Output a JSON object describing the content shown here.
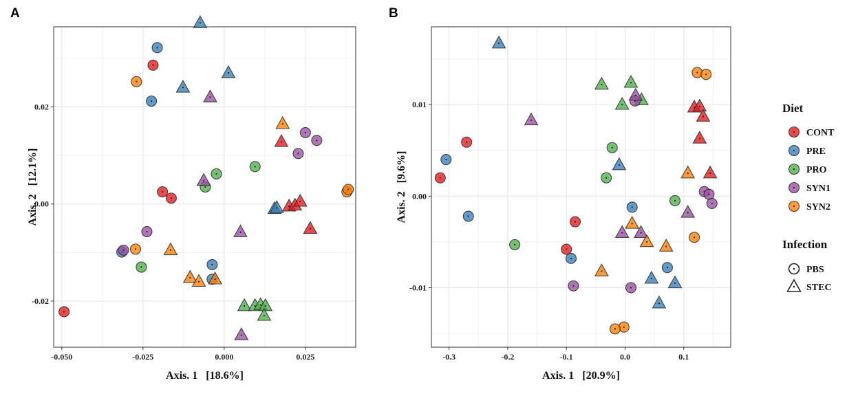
{
  "colors": {
    "CONT": "#e41a1c",
    "PRE": "#377eb8",
    "PRO": "#4daf4a",
    "SYN1": "#984ea3",
    "SYN2": "#ff7f00"
  },
  "legend": {
    "diet_title": "Diet",
    "diet_items": [
      "CONT",
      "PRE",
      "PRO",
      "SYN1",
      "SYN2"
    ],
    "infection_title": "Infection",
    "infection_items": [
      "PBS",
      "STEC"
    ]
  },
  "chart_data": [
    {
      "panel": "A",
      "type": "scatter",
      "xlabel": "Axis. 1   [18.6%]",
      "ylabel": "Axis. 2   [12.1%]",
      "xlim": [
        -0.0525,
        0.0405
      ],
      "ylim": [
        -0.0295,
        0.0365
      ],
      "xticks": [
        -0.05,
        -0.025,
        0.0,
        0.025
      ],
      "xtick_labels": [
        "-0.050",
        "-0.025",
        "0.000",
        "0.025"
      ],
      "yticks": [
        -0.02,
        0.0,
        0.02
      ],
      "ytick_labels": [
        "-0.02",
        "0.00",
        "0.02"
      ],
      "points": [
        {
          "x": -0.0219,
          "y": 0.0286,
          "diet": "CONT",
          "infection": "PBS"
        },
        {
          "x": -0.019,
          "y": 0.0025,
          "diet": "CONT",
          "infection": "PBS"
        },
        {
          "x": -0.0163,
          "y": 0.0012,
          "diet": "CONT",
          "infection": "PBS"
        },
        {
          "x": -0.0493,
          "y": -0.0222,
          "diet": "CONT",
          "infection": "PBS"
        },
        {
          "x": 0.0176,
          "y": 0.0128,
          "diet": "CONT",
          "infection": "STEC"
        },
        {
          "x": 0.02,
          "y": -0.0005,
          "diet": "CONT",
          "infection": "STEC"
        },
        {
          "x": 0.0218,
          "y": -0.0003,
          "diet": "CONT",
          "infection": "STEC"
        },
        {
          "x": 0.0234,
          "y": 0.0005,
          "diet": "CONT",
          "infection": "STEC"
        },
        {
          "x": 0.0265,
          "y": -0.0051,
          "diet": "CONT",
          "infection": "STEC"
        },
        {
          "x": -0.0206,
          "y": 0.0322,
          "diet": "PRE",
          "infection": "PBS"
        },
        {
          "x": -0.0224,
          "y": 0.0212,
          "diet": "PRE",
          "infection": "PBS"
        },
        {
          "x": -0.0315,
          "y": -0.0099,
          "diet": "PRE",
          "infection": "PBS"
        },
        {
          "x": -0.0037,
          "y": -0.0125,
          "diet": "PRE",
          "infection": "PBS"
        },
        {
          "x": -0.0037,
          "y": -0.0155,
          "diet": "PRE",
          "infection": "PBS"
        },
        {
          "x": -0.0074,
          "y": 0.0373,
          "diet": "PRE",
          "infection": "STEC"
        },
        {
          "x": -0.0127,
          "y": 0.024,
          "diet": "PRE",
          "infection": "STEC"
        },
        {
          "x": 0.0013,
          "y": 0.027,
          "diet": "PRE",
          "infection": "STEC"
        },
        {
          "x": 0.0155,
          "y": -0.001,
          "diet": "PRE",
          "infection": "STEC"
        },
        {
          "x": 0.0162,
          "y": -0.0008,
          "diet": "PRE",
          "infection": "STEC"
        },
        {
          "x": -0.0058,
          "y": 0.0035,
          "diet": "PRO",
          "infection": "PBS"
        },
        {
          "x": -0.0024,
          "y": 0.0062,
          "diet": "PRO",
          "infection": "PBS"
        },
        {
          "x": 0.0095,
          "y": 0.0077,
          "diet": "PRO",
          "infection": "PBS"
        },
        {
          "x": -0.0255,
          "y": -0.013,
          "diet": "PRO",
          "infection": "PBS"
        },
        {
          "x": 0.0062,
          "y": -0.021,
          "diet": "PRO",
          "infection": "STEC"
        },
        {
          "x": 0.0095,
          "y": -0.021,
          "diet": "PRO",
          "infection": "STEC"
        },
        {
          "x": 0.0112,
          "y": -0.0208,
          "diet": "PRO",
          "infection": "STEC"
        },
        {
          "x": 0.0127,
          "y": -0.021,
          "diet": "PRO",
          "infection": "STEC"
        },
        {
          "x": 0.0123,
          "y": -0.023,
          "diet": "PRO",
          "infection": "STEC"
        },
        {
          "x": -0.031,
          "y": -0.0095,
          "diet": "SYN1",
          "infection": "PBS"
        },
        {
          "x": -0.0238,
          "y": -0.0057,
          "diet": "SYN1",
          "infection": "PBS"
        },
        {
          "x": 0.025,
          "y": 0.0147,
          "diet": "SYN1",
          "infection": "PBS"
        },
        {
          "x": 0.0285,
          "y": 0.0131,
          "diet": "SYN1",
          "infection": "PBS"
        },
        {
          "x": 0.0228,
          "y": 0.0104,
          "diet": "SYN1",
          "infection": "PBS"
        },
        {
          "x": -0.0043,
          "y": 0.022,
          "diet": "SYN1",
          "infection": "STEC"
        },
        {
          "x": -0.0063,
          "y": 0.0048,
          "diet": "SYN1",
          "infection": "STEC"
        },
        {
          "x": 0.005,
          "y": -0.0058,
          "diet": "SYN1",
          "infection": "STEC"
        },
        {
          "x": 0.0053,
          "y": -0.027,
          "diet": "SYN1",
          "infection": "STEC"
        },
        {
          "x": -0.027,
          "y": 0.0252,
          "diet": "SYN2",
          "infection": "PBS"
        },
        {
          "x": -0.0273,
          "y": -0.0093,
          "diet": "SYN2",
          "infection": "PBS"
        },
        {
          "x": 0.0378,
          "y": 0.0025,
          "diet": "SYN2",
          "infection": "PBS"
        },
        {
          "x": 0.0382,
          "y": 0.003,
          "diet": "SYN2",
          "infection": "PBS"
        },
        {
          "x": 0.018,
          "y": 0.0165,
          "diet": "SYN2",
          "infection": "STEC"
        },
        {
          "x": -0.0165,
          "y": -0.0095,
          "diet": "SYN2",
          "infection": "STEC"
        },
        {
          "x": -0.0105,
          "y": -0.0152,
          "diet": "SYN2",
          "infection": "STEC"
        },
        {
          "x": -0.0078,
          "y": -0.016,
          "diet": "SYN2",
          "infection": "STEC"
        },
        {
          "x": -0.0028,
          "y": -0.0155,
          "diet": "SYN2",
          "infection": "STEC"
        }
      ]
    },
    {
      "panel": "B",
      "type": "scatter",
      "xlabel": "Axis. 1   [20.9%]",
      "ylabel": "Axis. 2   [9.6%]",
      "xlim": [
        -0.33,
        0.18
      ],
      "ylim": [
        -0.0165,
        0.0185
      ],
      "xticks": [
        -0.3,
        -0.2,
        -0.1,
        0.0,
        0.1
      ],
      "xtick_labels": [
        "-0.3",
        "-0.2",
        "-0.1",
        "0.0",
        "0.1"
      ],
      "yticks": [
        -0.01,
        0.0,
        0.01
      ],
      "ytick_labels": [
        "-0.01",
        "0.00",
        "0.01"
      ],
      "points": [
        {
          "x": -0.27,
          "y": 0.0059,
          "diet": "CONT",
          "infection": "PBS"
        },
        {
          "x": -0.315,
          "y": 0.002,
          "diet": "CONT",
          "infection": "PBS"
        },
        {
          "x": -0.085,
          "y": -0.0028,
          "diet": "CONT",
          "infection": "PBS"
        },
        {
          "x": -0.1,
          "y": -0.0058,
          "diet": "CONT",
          "infection": "PBS"
        },
        {
          "x": 0.118,
          "y": 0.0097,
          "diet": "CONT",
          "infection": "STEC"
        },
        {
          "x": 0.127,
          "y": 0.0098,
          "diet": "CONT",
          "infection": "STEC"
        },
        {
          "x": 0.133,
          "y": 0.0087,
          "diet": "CONT",
          "infection": "STEC"
        },
        {
          "x": 0.127,
          "y": 0.0063,
          "diet": "CONT",
          "infection": "STEC"
        },
        {
          "x": 0.145,
          "y": 0.0025,
          "diet": "CONT",
          "infection": "STEC"
        },
        {
          "x": -0.305,
          "y": 0.004,
          "diet": "PRE",
          "infection": "PBS"
        },
        {
          "x": -0.267,
          "y": -0.0022,
          "diet": "PRE",
          "infection": "PBS"
        },
        {
          "x": 0.012,
          "y": -0.0012,
          "diet": "PRE",
          "infection": "PBS"
        },
        {
          "x": -0.092,
          "y": -0.0068,
          "diet": "PRE",
          "infection": "PBS"
        },
        {
          "x": 0.072,
          "y": -0.0078,
          "diet": "PRE",
          "infection": "PBS"
        },
        {
          "x": -0.215,
          "y": 0.0167,
          "diet": "PRE",
          "infection": "STEC"
        },
        {
          "x": -0.01,
          "y": 0.0034,
          "diet": "PRE",
          "infection": "STEC"
        },
        {
          "x": 0.045,
          "y": -0.009,
          "diet": "PRE",
          "infection": "STEC"
        },
        {
          "x": 0.085,
          "y": -0.0095,
          "diet": "PRE",
          "infection": "STEC"
        },
        {
          "x": 0.058,
          "y": -0.0117,
          "diet": "PRE",
          "infection": "STEC"
        },
        {
          "x": -0.022,
          "y": 0.0053,
          "diet": "PRO",
          "infection": "PBS"
        },
        {
          "x": -0.032,
          "y": 0.002,
          "diet": "PRO",
          "infection": "PBS"
        },
        {
          "x": 0.085,
          "y": -0.0005,
          "diet": "PRO",
          "infection": "PBS"
        },
        {
          "x": -0.188,
          "y": -0.0053,
          "diet": "PRO",
          "infection": "PBS"
        },
        {
          "x": -0.04,
          "y": 0.0122,
          "diet": "PRO",
          "infection": "STEC"
        },
        {
          "x": 0.01,
          "y": 0.0124,
          "diet": "PRO",
          "infection": "STEC"
        },
        {
          "x": -0.005,
          "y": 0.01,
          "diet": "PRO",
          "infection": "STEC"
        },
        {
          "x": 0.028,
          "y": 0.0105,
          "diet": "PRO",
          "infection": "STEC"
        },
        {
          "x": 0.017,
          "y": 0.0104,
          "diet": "SYN1",
          "infection": "PBS"
        },
        {
          "x": 0.135,
          "y": 0.0005,
          "diet": "SYN1",
          "infection": "PBS"
        },
        {
          "x": 0.143,
          "y": 0.0002,
          "diet": "SYN1",
          "infection": "PBS"
        },
        {
          "x": 0.148,
          "y": -0.0008,
          "diet": "SYN1",
          "infection": "PBS"
        },
        {
          "x": -0.088,
          "y": -0.0098,
          "diet": "SYN1",
          "infection": "PBS"
        },
        {
          "x": 0.01,
          "y": -0.01,
          "diet": "SYN1",
          "infection": "PBS"
        },
        {
          "x": -0.16,
          "y": 0.0083,
          "diet": "SYN1",
          "infection": "STEC"
        },
        {
          "x": 0.018,
          "y": 0.011,
          "diet": "SYN1",
          "infection": "STEC"
        },
        {
          "x": 0.107,
          "y": -0.0018,
          "diet": "SYN1",
          "infection": "STEC"
        },
        {
          "x": -0.005,
          "y": -0.004,
          "diet": "SYN1",
          "infection": "STEC"
        },
        {
          "x": 0.027,
          "y": -0.004,
          "diet": "SYN1",
          "infection": "STEC"
        },
        {
          "x": 0.123,
          "y": 0.0135,
          "diet": "SYN2",
          "infection": "PBS"
        },
        {
          "x": 0.138,
          "y": 0.0133,
          "diet": "SYN2",
          "infection": "PBS"
        },
        {
          "x": 0.118,
          "y": -0.0045,
          "diet": "SYN2",
          "infection": "PBS"
        },
        {
          "x": -0.002,
          "y": -0.0143,
          "diet": "SYN2",
          "infection": "PBS"
        },
        {
          "x": -0.017,
          "y": -0.0145,
          "diet": "SYN2",
          "infection": "PBS"
        },
        {
          "x": 0.107,
          "y": 0.0025,
          "diet": "SYN2",
          "infection": "STEC"
        },
        {
          "x": 0.012,
          "y": -0.003,
          "diet": "SYN2",
          "infection": "STEC"
        },
        {
          "x": 0.037,
          "y": -0.005,
          "diet": "SYN2",
          "infection": "STEC"
        },
        {
          "x": 0.07,
          "y": -0.0055,
          "diet": "SYN2",
          "infection": "STEC"
        },
        {
          "x": -0.04,
          "y": -0.0082,
          "diet": "SYN2",
          "infection": "STEC"
        }
      ]
    }
  ]
}
